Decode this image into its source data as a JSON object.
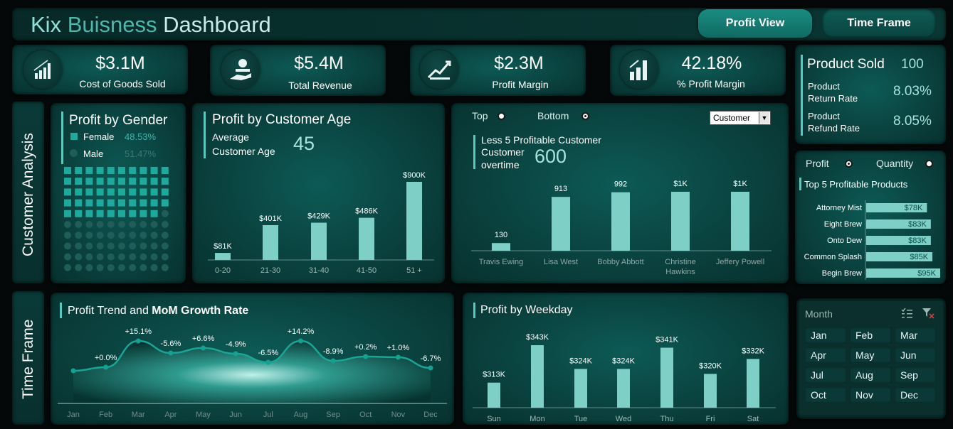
{
  "header": {
    "title_part1": "Kix",
    "title_part2": "Buisness",
    "title_part3": "Dashboard",
    "profit_view_btn": "Profit View",
    "time_frame_btn": "Time Frame"
  },
  "kpis": [
    {
      "value": "$3.1M",
      "label": "Cost of Goods Sold",
      "icon": "bar-chart-icon"
    },
    {
      "value": "$5.4M",
      "label": "Total Revenue",
      "icon": "hand-coin-icon"
    },
    {
      "value": "$2.3M",
      "label": "Profit  Margin",
      "icon": "growth-chart-icon"
    },
    {
      "value": "42.18%",
      "label": "% Profit Margin",
      "icon": "money-bars-icon"
    }
  ],
  "product_sold": {
    "title": "Product Sold",
    "value": "100",
    "return_label_1": "Product",
    "return_label_2": "Return Rate",
    "return_value": "8.03%",
    "refund_label_1": "Product",
    "refund_label_2": "Refund Rate",
    "refund_value": "8.05%"
  },
  "side_labels": {
    "customer": "Customer Analysis",
    "time": "Time Frame"
  },
  "gender": {
    "title": "Profit by Gender",
    "female_label": "Female",
    "female_value": "48.53%",
    "male_label": "Male",
    "male_value": "51.47%",
    "female_share": 0.4853
  },
  "age": {
    "title": "Profit by Customer Age",
    "avg_label_1": "Average",
    "avg_label_2": "Customer Age",
    "avg_value": "45"
  },
  "customers": {
    "top_label": "Top",
    "bottom_label": "Bottom",
    "dropdown_value": "Customer",
    "subtitle": "Less 5 Profitable Customer",
    "count_label_1": "Customer",
    "count_label_2": "overtime",
    "count_value": "600"
  },
  "top_products": {
    "profit_label": "Profit",
    "quantity_label": "Quantity",
    "title": "Top 5 Profitable Products"
  },
  "trend": {
    "title_regular": "Profit Trend and ",
    "title_bold": "MoM Growth Rate"
  },
  "weekday": {
    "title": "Profit by Weekday"
  },
  "slicer": {
    "title": "Month",
    "months": [
      "Jan",
      "Feb",
      "Mar",
      "Apr",
      "May",
      "Jun",
      "Jul",
      "Aug",
      "Sep",
      "Oct",
      "Nov",
      "Dec"
    ]
  },
  "colors": {
    "accent": "#5cc7bd",
    "bar": "#7ecfc6",
    "panel": "#0a423f",
    "background": "#050808"
  },
  "chart_data": [
    {
      "type": "bar",
      "name": "age",
      "categories": [
        "0-20",
        "21-30",
        "31-40",
        "41-50",
        "51 +"
      ],
      "values": [
        81,
        401,
        429,
        486,
        900
      ],
      "labels": [
        "$81K",
        "$401K",
        "$429K",
        "$486K",
        "$900K"
      ],
      "ylim": [
        0,
        900
      ]
    },
    {
      "type": "bar",
      "name": "customers",
      "categories": [
        "Travis Ewing",
        "Lisa West",
        "Bobby Abbott",
        "Christine Hawkins",
        "Jeffery Powell"
      ],
      "category_lines": [
        [
          "Travis Ewing"
        ],
        [
          "Lisa West"
        ],
        [
          "Bobby Abbott"
        ],
        [
          "Christine",
          "Hawkins"
        ],
        [
          "Jeffery Powell"
        ]
      ],
      "values": [
        130,
        913,
        992,
        1000,
        1000
      ],
      "labels": [
        "130",
        "913",
        "992",
        "$1K",
        "$1K"
      ],
      "ylim": [
        0,
        1000
      ]
    },
    {
      "type": "bar",
      "name": "products",
      "categories": [
        "Attorney Mist",
        "Eight Brew",
        "Onto Dew",
        "Common Splash",
        "Begin Brew"
      ],
      "values": [
        78,
        83,
        83,
        85,
        95
      ],
      "labels": [
        "$78K",
        "$83K",
        "$83K",
        "$85K",
        "$95K"
      ],
      "ylim": [
        0,
        95
      ]
    },
    {
      "type": "area",
      "name": "trend",
      "categories": [
        "Jan",
        "Feb",
        "Mar",
        "Apr",
        "May",
        "Jun",
        "Jul",
        "Aug",
        "Sep",
        "Oct",
        "Nov",
        "Dec"
      ],
      "values": [
        null,
        0.0,
        15.1,
        -5.6,
        6.6,
        -4.9,
        -6.5,
        14.2,
        -8.9,
        0.2,
        1.0,
        -6.7
      ],
      "labels": [
        "",
        "+0.0%",
        "+15.1%",
        "-5.6%",
        "+6.6%",
        "-4.9%",
        "-6.5%",
        "+14.2%",
        "-8.9%",
        "+0.2%",
        "+1.0%",
        "-6.7%"
      ]
    },
    {
      "type": "bar",
      "name": "weekday",
      "categories": [
        "Sun",
        "Mon",
        "Tue",
        "Wed",
        "Thu",
        "Fri",
        "Sat"
      ],
      "values": [
        313,
        343,
        324,
        324,
        341,
        320,
        332
      ],
      "labels": [
        "$313K",
        "$343K",
        "$324K",
        "$324K",
        "$341K",
        "$320K",
        "$332K"
      ],
      "ylim": [
        290,
        343
      ]
    }
  ]
}
